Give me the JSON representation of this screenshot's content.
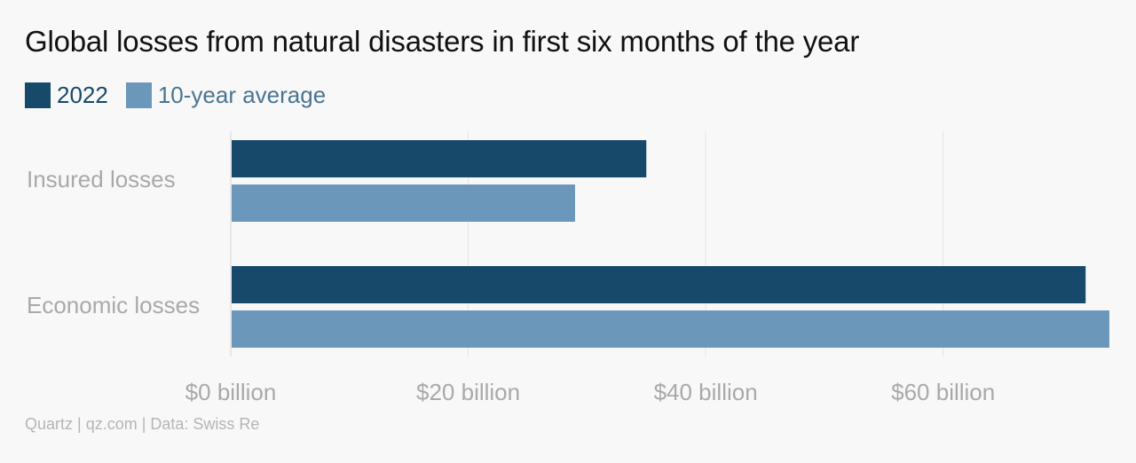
{
  "title": "Global losses from natural disasters in first six months of the year",
  "source": "Quartz | qz.com | Data: Swiss Re",
  "colors": {
    "series_2022": "#174a6a",
    "series_avg": "#6b97ba",
    "legend_text_2022": "#174a6a",
    "legend_text_avg": "#4a7593"
  },
  "chart_data": {
    "type": "bar",
    "orientation": "horizontal",
    "title": "Global losses from natural disasters in first six months of the year",
    "categories": [
      "Insured losses",
      "Economic losses"
    ],
    "series": [
      {
        "name": "2022",
        "values": [
          35,
          72
        ],
        "color": "#174a6a"
      },
      {
        "name": "10-year average",
        "values": [
          29,
          74
        ],
        "color": "#6b97ba"
      }
    ],
    "x_ticks": [
      0,
      20,
      40,
      60
    ],
    "x_tick_labels": [
      "$0 billion",
      "$20 billion",
      "$40 billion",
      "$60 billion"
    ],
    "xlim": [
      0,
      74
    ],
    "grid": true,
    "legend_position": "top-left",
    "xlabel": "",
    "ylabel": ""
  }
}
